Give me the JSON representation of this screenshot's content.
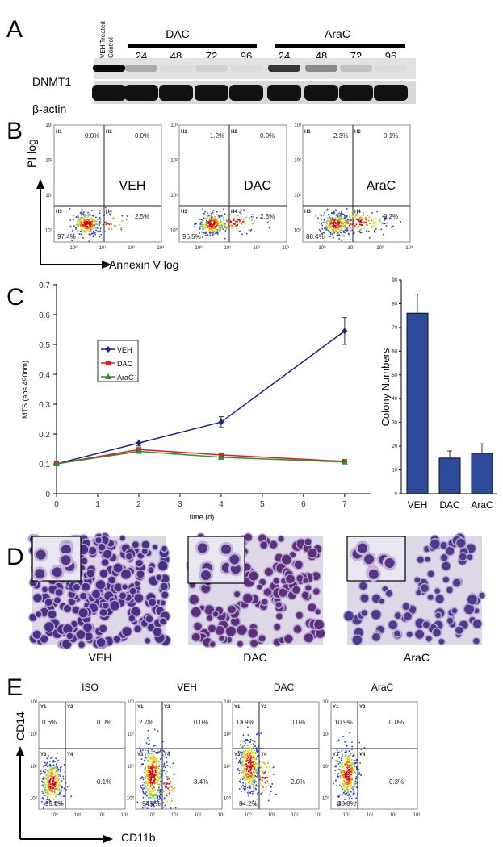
{
  "panel_letters": [
    "A",
    "B",
    "C",
    "D",
    "E"
  ],
  "panel_a": {
    "control_label_1": "VEH Treated",
    "control_label_2": "Control",
    "groups": [
      {
        "name": "DAC",
        "times": [
          "24",
          "48",
          "72",
          "96"
        ]
      },
      {
        "name": "AraC",
        "times": [
          "24",
          "48",
          "72",
          "96"
        ]
      }
    ],
    "rows": [
      "DNMT1",
      "β-actin"
    ],
    "dnmt1_band_intensity": [
      1.0,
      0.25,
      0.03,
      0.08,
      0.03,
      0.8,
      0.4,
      0.15,
      0.03
    ]
  },
  "panel_b": {
    "y_axis": "PI log",
    "x_axis": "Annexin V log",
    "ticks": [
      "10⁰",
      "10¹",
      "10²",
      "10³"
    ],
    "plots": [
      {
        "label": "VEH",
        "H1": "0.0%",
        "H2": "0.0%",
        "H3": "97.4%",
        "H4": "2.5%"
      },
      {
        "label": "DAC",
        "H1": "1.2%",
        "H2": "0.0%",
        "H3": "96.5%",
        "H4": "2.3%"
      },
      {
        "label": "AraC",
        "H1": "2.3%",
        "H2": "0.1%",
        "H3": "88.4%",
        "H4": "9.2%"
      }
    ]
  },
  "chart_data": [
    {
      "type": "line",
      "xlabel": "time (d)",
      "ylabel": "MTS (abs 490nm)",
      "x": [
        0,
        2,
        4,
        7
      ],
      "xticks": [
        "0",
        "1",
        "2",
        "3",
        "4",
        "5",
        "6",
        "7"
      ],
      "yticks": [
        "0",
        "0.1",
        "0.2",
        "0.3",
        "0.4",
        "0.5",
        "0.6",
        "0.7"
      ],
      "ylim": [
        0,
        0.7
      ],
      "xlim": [
        0,
        7
      ],
      "legend_position": "upper-left",
      "series": [
        {
          "name": "VEH",
          "color": "#1a237e",
          "marker": "diamond",
          "values": [
            0.1,
            0.17,
            0.24,
            0.545
          ],
          "errors": [
            0,
            0.01,
            0.018,
            0.045
          ]
        },
        {
          "name": "DAC",
          "color": "#e31a1c",
          "marker": "square",
          "values": [
            0.1,
            0.148,
            0.13,
            0.108
          ],
          "errors": [
            0,
            0.004,
            0.004,
            0.003
          ]
        },
        {
          "name": "AraC",
          "color": "#2e8b2e",
          "marker": "triangle",
          "values": [
            0.1,
            0.142,
            0.122,
            0.106
          ],
          "errors": [
            0,
            0.004,
            0.004,
            0.003
          ]
        }
      ]
    },
    {
      "type": "bar",
      "ylabel": "Colony Numbers",
      "categories": [
        "VEH",
        "DAC",
        "AraC"
      ],
      "values": [
        76,
        15,
        17
      ],
      "errors": [
        8,
        3,
        4
      ],
      "yticks": [
        "0",
        "10",
        "20",
        "30",
        "40",
        "50",
        "60",
        "70",
        "80",
        "90"
      ],
      "ylim": [
        0,
        90
      ],
      "color": "#2b4a9a"
    }
  ],
  "panel_d": {
    "labels": [
      "VEH",
      "DAC",
      "AraC"
    ]
  },
  "panel_e": {
    "y_axis": "CD14",
    "x_axis": "CD11b",
    "ticks": [
      "10⁰",
      "10¹",
      "10²",
      "10³"
    ],
    "plots": [
      {
        "label": "ISO",
        "Y1": "0.6%",
        "Y2": "0.0%",
        "Y3": "99.3%",
        "Y4": "0.1%"
      },
      {
        "label": "VEH",
        "Y1": "2.7%",
        "Y2": "0.0%",
        "Y3": "94.0%",
        "Y4": "3.4%"
      },
      {
        "label": "DAC",
        "Y1": "13.9%",
        "Y2": "0.0%",
        "Y3": "84.2%",
        "Y4": "2.0%"
      },
      {
        "label": "AraC",
        "Y1": "10.9%",
        "Y2": "0.0%",
        "Y3": "88.8%",
        "Y4": "0.3%"
      }
    ]
  }
}
